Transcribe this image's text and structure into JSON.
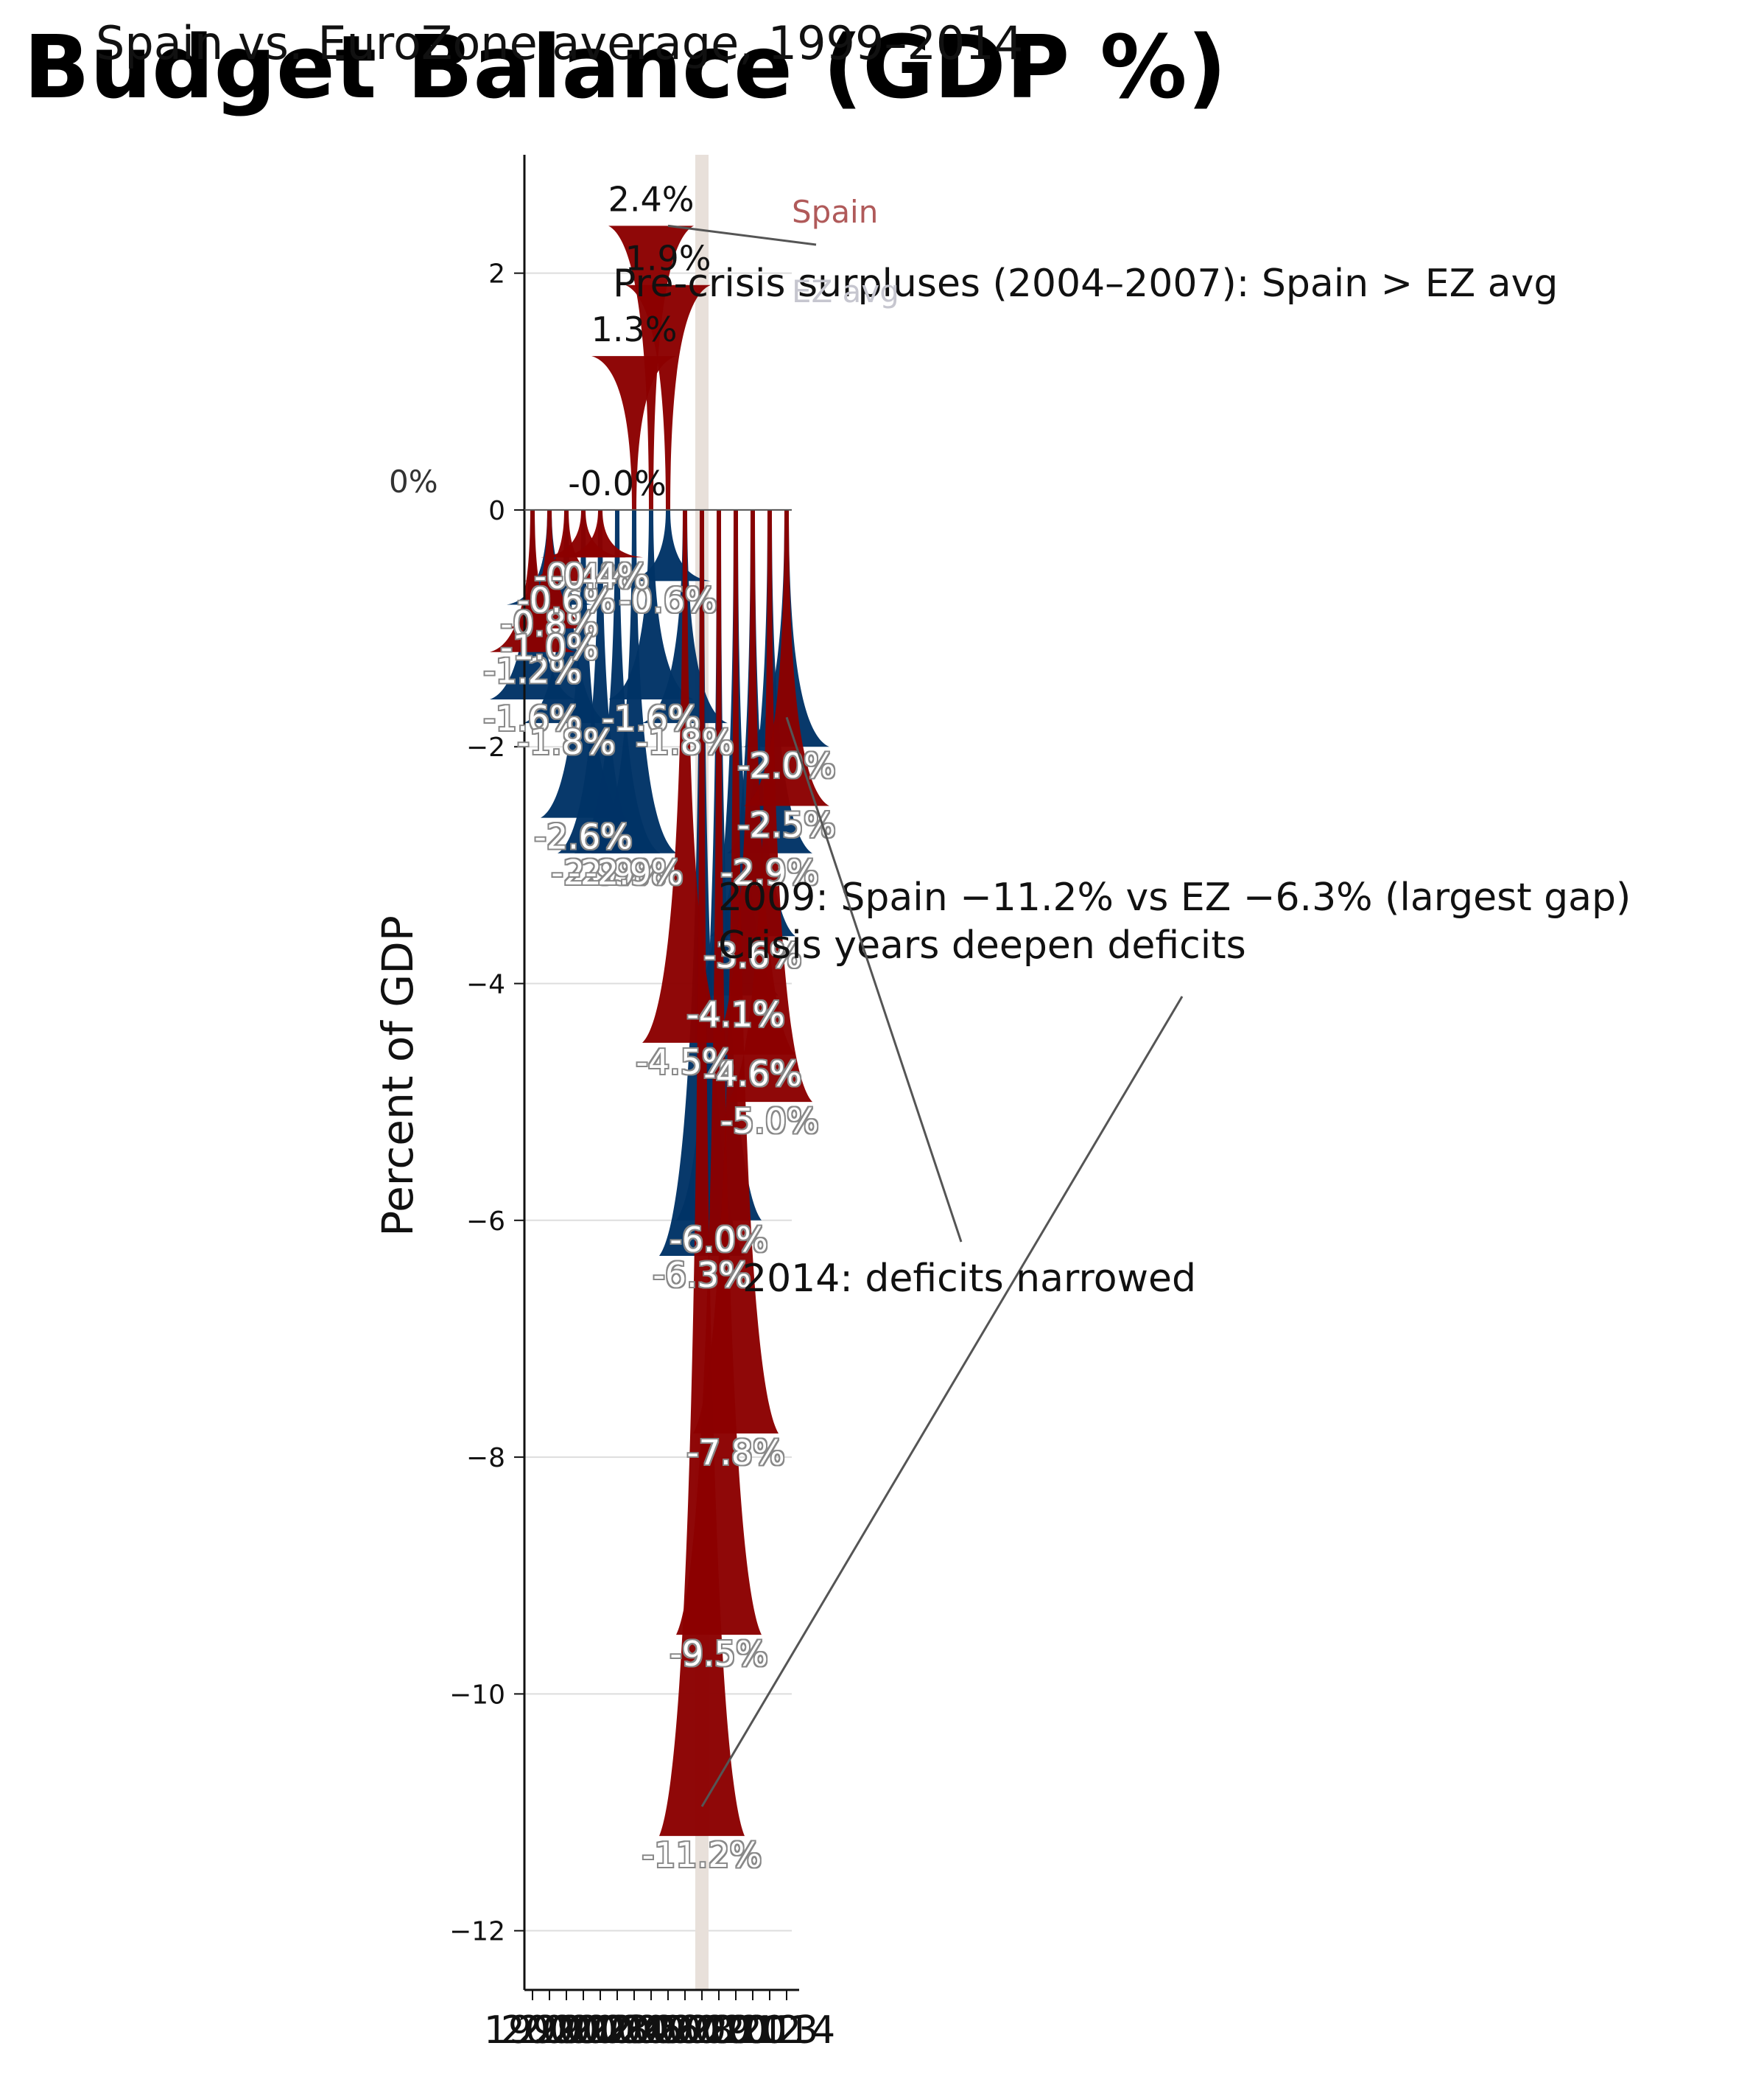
{
  "chart_data": {
    "type": "area",
    "title": "Budget Balance (GDP %)",
    "subtitle": "Spain vs. EuroZone average, 1999–2014",
    "xlabel": "",
    "ylabel": "Percent of GDP",
    "ylim": [
      -12.5,
      3.0
    ],
    "yticks": [
      2,
      0,
      -2,
      -4,
      -6,
      -8,
      -10,
      -12
    ],
    "ytick_labels": [
      "2",
      "0",
      "−2",
      "−4",
      "−6",
      "−8",
      "−10",
      "−12"
    ],
    "grid": true,
    "categories": [
      "1999",
      "2000",
      "2001",
      "2002",
      "2003",
      "2004",
      "2005",
      "2006",
      "2007",
      "2008",
      "2009",
      "2010",
      "2011",
      "2012",
      "2013",
      "2014"
    ],
    "series": [
      {
        "name": "Spain",
        "color": "#8b0000",
        "values": [
          -1.2,
          -1.0,
          -0.6,
          -0.4,
          -0.4,
          0.0,
          1.3,
          2.4,
          1.9,
          -4.5,
          -11.2,
          -9.5,
          -7.8,
          -4.6,
          -5.0,
          -2.5
        ],
        "labels": [
          "-1.2%",
          "-1.0%",
          "-0.6%",
          "-0.4%",
          "-0.4%",
          "-0.0%",
          "1.3%",
          "2.4%",
          "1.9%",
          "-4.5%",
          "-11.2%",
          "-9.5%",
          "-7.8%",
          "-4.6%",
          "-5.0%",
          "-2.5%"
        ]
      },
      {
        "name": "EZ avg",
        "color": "#003366",
        "values": [
          -1.6,
          -0.8,
          -1.8,
          -2.6,
          -2.9,
          -2.9,
          -2.9,
          -1.6,
          -0.6,
          -1.8,
          -6.3,
          -6.0,
          -4.1,
          -3.6,
          -2.9,
          -2.0
        ],
        "labels": [
          "-1.6%",
          "-0.8%",
          "-1.8%",
          "-2.6%",
          "-2.9%",
          "-2.9%",
          "-2.9%",
          "-1.6%",
          "-0.6%",
          "-1.8%",
          "-6.3%",
          "-6.0%",
          "-4.1%",
          "-3.6%",
          "-2.9%",
          "-2.0%"
        ]
      }
    ],
    "highlight_x": "2009",
    "zero_label": "0%",
    "legend": [
      "Spain",
      "EZ avg"
    ],
    "annotations": [
      {
        "text": "Pre-crisis surpluses (2004–2007): Spain > EZ avg",
        "point_x": "2007",
        "point_y": 2.4
      },
      {
        "text": "2009: Spain −11.2% vs EZ −6.3% (largest gap)",
        "point_x": "2009",
        "point_y": -11.2
      },
      {
        "text": "Crisis years deepen deficits",
        "point_x": "2009",
        "point_y": -11.2
      },
      {
        "text": "2014: deficits narrowed",
        "point_x": "2014",
        "point_y": -2.0
      }
    ]
  }
}
